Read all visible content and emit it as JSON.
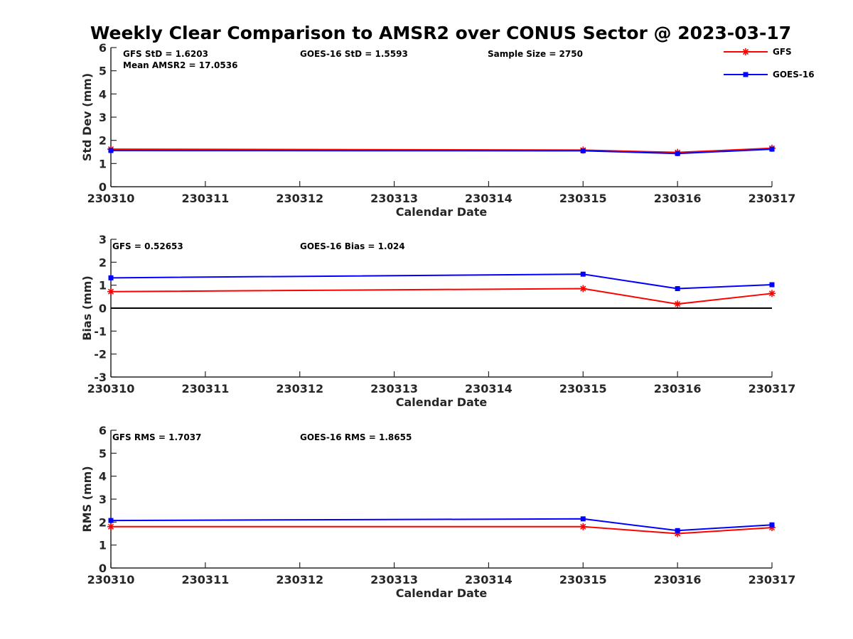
{
  "title": "Weekly Clear Comparison to AMSR2 over CONUS Sector @ 2023-03-17",
  "legend": {
    "placement": "top-right",
    "items": [
      {
        "name": "GFS",
        "color": "#ff0000",
        "marker": "asterisk"
      },
      {
        "name": "GOES-16",
        "color": "#0000ff",
        "marker": "square"
      }
    ]
  },
  "chart_data": [
    {
      "type": "line",
      "ylabel": "Std Dev (mm)",
      "xlabel": "Calendar Date",
      "categories": [
        "230310",
        "230311",
        "230312",
        "230313",
        "230314",
        "230315",
        "230316",
        "230317"
      ],
      "ylim": [
        0,
        6
      ],
      "yticks": [
        "0",
        "1",
        "2",
        "3",
        "4",
        "5",
        "6"
      ],
      "zero_line": false,
      "annotations": [
        "GFS StD = 1.6203",
        "Mean AMSR2 = 17.0536",
        "GOES-16 StD = 1.5593",
        "Sample Size = 2750"
      ],
      "series": [
        {
          "name": "GFS",
          "color": "#ff0000",
          "x": [
            0,
            5,
            6,
            7
          ],
          "values": [
            1.62,
            1.58,
            1.48,
            1.66
          ]
        },
        {
          "name": "GOES-16",
          "color": "#0000ff",
          "x": [
            0,
            5,
            6,
            7
          ],
          "values": [
            1.56,
            1.55,
            1.43,
            1.62
          ]
        }
      ]
    },
    {
      "type": "line",
      "ylabel": "Bias (mm)",
      "xlabel": "Calendar Date",
      "categories": [
        "230310",
        "230311",
        "230312",
        "230313",
        "230314",
        "230315",
        "230316",
        "230317"
      ],
      "ylim": [
        -3,
        3
      ],
      "yticks": [
        "-3",
        "-2",
        "-1",
        "0",
        "1",
        "2",
        "3"
      ],
      "zero_line": true,
      "annotations": [
        "GFS = 0.52653",
        "GOES-16 Bias  = 1.024"
      ],
      "series": [
        {
          "name": "GFS",
          "color": "#ff0000",
          "x": [
            0,
            5,
            6,
            7
          ],
          "values": [
            0.72,
            0.85,
            0.18,
            0.64
          ]
        },
        {
          "name": "GOES-16",
          "color": "#0000ff",
          "x": [
            0,
            5,
            6,
            7
          ],
          "values": [
            1.32,
            1.48,
            0.85,
            1.02
          ]
        }
      ]
    },
    {
      "type": "line",
      "ylabel": "RMS (mm)",
      "xlabel": "Calendar Date",
      "categories": [
        "230310",
        "230311",
        "230312",
        "230313",
        "230314",
        "230315",
        "230316",
        "230317"
      ],
      "ylim": [
        0,
        6
      ],
      "yticks": [
        "0",
        "1",
        "2",
        "3",
        "4",
        "5",
        "6"
      ],
      "zero_line": false,
      "annotations": [
        "GFS RMS = 1.7037",
        "GOES-16 RMS = 1.8655"
      ],
      "series": [
        {
          "name": "GFS",
          "color": "#ff0000",
          "x": [
            0,
            5,
            6,
            7
          ],
          "values": [
            1.8,
            1.8,
            1.5,
            1.76
          ]
        },
        {
          "name": "GOES-16",
          "color": "#0000ff",
          "x": [
            0,
            5,
            6,
            7
          ],
          "values": [
            2.07,
            2.14,
            1.63,
            1.88
          ]
        }
      ]
    }
  ]
}
